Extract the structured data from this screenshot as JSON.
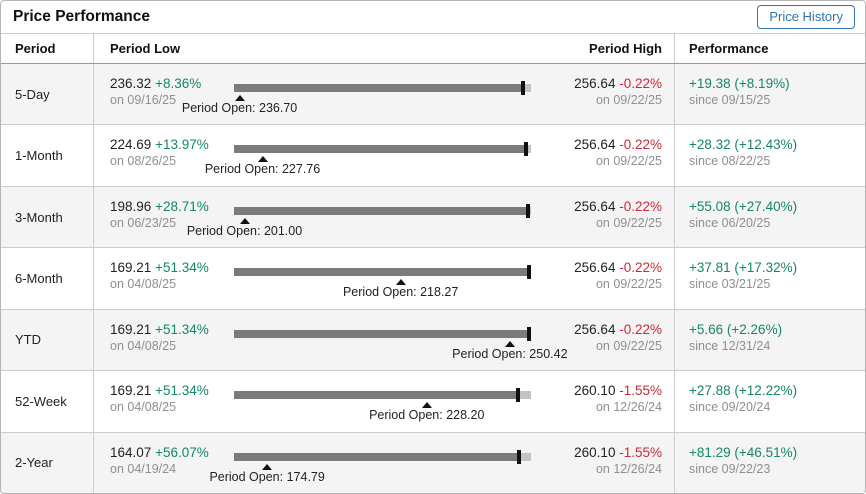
{
  "header": {
    "title": "Price Performance",
    "button_label": "Price History"
  },
  "columns": {
    "period": "Period",
    "low": "Period Low",
    "high": "Period High",
    "performance": "Performance"
  },
  "current_price": 256.07,
  "colors": {
    "positive": "#158667",
    "negative": "#cc2936",
    "muted": "#8f8f8f",
    "bar_dark": "#7b7b7b",
    "bar_light": "#c3c3c3",
    "marker": "#101010",
    "button_blue": "#2d74b5",
    "alt_row": "#f4f4f4"
  },
  "rows": [
    {
      "period": "5-Day",
      "low": "236.32",
      "low_pct": "+8.36%",
      "low_date": "on 09/16/25",
      "open_label": "Period Open: 236.70",
      "high": "256.64",
      "high_pct": "-0.22%",
      "high_date": "on 09/22/25",
      "perf": "+19.38 (+8.19%)",
      "perf_since": "since 09/15/25",
      "low_val": 236.32,
      "high_val": 256.64,
      "open_val": 236.7
    },
    {
      "period": "1-Month",
      "low": "224.69",
      "low_pct": "+13.97%",
      "low_date": "on 08/26/25",
      "open_label": "Period Open: 227.76",
      "high": "256.64",
      "high_pct": "-0.22%",
      "high_date": "on 09/22/25",
      "perf": "+28.32 (+12.43%)",
      "perf_since": "since 08/22/25",
      "low_val": 224.69,
      "high_val": 256.64,
      "open_val": 227.76
    },
    {
      "period": "3-Month",
      "low": "198.96",
      "low_pct": "+28.71%",
      "low_date": "on 06/23/25",
      "open_label": "Period Open: 201.00",
      "high": "256.64",
      "high_pct": "-0.22%",
      "high_date": "on 09/22/25",
      "perf": "+55.08 (+27.40%)",
      "perf_since": "since 06/20/25",
      "low_val": 198.96,
      "high_val": 256.64,
      "open_val": 201.0
    },
    {
      "period": "6-Month",
      "low": "169.21",
      "low_pct": "+51.34%",
      "low_date": "on 04/08/25",
      "open_label": "Period Open: 218.27",
      "high": "256.64",
      "high_pct": "-0.22%",
      "high_date": "on 09/22/25",
      "perf": "+37.81 (+17.32%)",
      "perf_since": "since 03/21/25",
      "low_val": 169.21,
      "high_val": 256.64,
      "open_val": 218.27
    },
    {
      "period": "YTD",
      "low": "169.21",
      "low_pct": "+51.34%",
      "low_date": "on 04/08/25",
      "open_label": "Period Open: 250.42",
      "high": "256.64",
      "high_pct": "-0.22%",
      "high_date": "on 09/22/25",
      "perf": "+5.66 (+2.26%)",
      "perf_since": "since 12/31/24",
      "low_val": 169.21,
      "high_val": 256.64,
      "open_val": 250.42
    },
    {
      "period": "52-Week",
      "low": "169.21",
      "low_pct": "+51.34%",
      "low_date": "on 04/08/25",
      "open_label": "Period Open: 228.20",
      "high": "260.10",
      "high_pct": "-1.55%",
      "high_date": "on 12/26/24",
      "perf": "+27.88 (+12.22%)",
      "perf_since": "since 09/20/24",
      "low_val": 169.21,
      "high_val": 260.1,
      "open_val": 228.2
    },
    {
      "period": "2-Year",
      "low": "164.07",
      "low_pct": "+56.07%",
      "low_date": "on 04/19/24",
      "open_label": "Period Open: 174.79",
      "high": "260.10",
      "high_pct": "-1.55%",
      "high_date": "on 12/26/24",
      "perf": "+81.29 (+46.51%)",
      "perf_since": "since 09/22/23",
      "low_val": 164.07,
      "high_val": 260.1,
      "open_val": 174.79
    }
  ]
}
